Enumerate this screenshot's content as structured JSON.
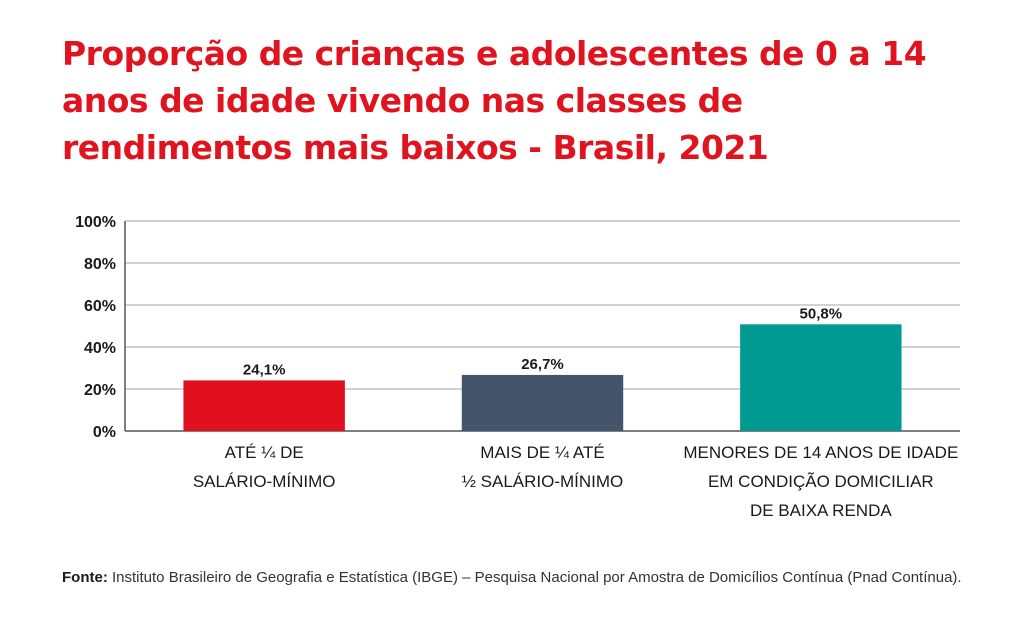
{
  "title": "Proporção de crianças e adolescentes de 0 a 14 anos de idade vivendo nas classes de rendimentos mais baixos - Brasil, 2021",
  "chart_data": {
    "type": "bar",
    "categories": [
      [
        "ATÉ ¼ DE",
        "SALÁRIO-MÍNIMO"
      ],
      [
        "MAIS DE ¼ ATÉ",
        "½ SALÁRIO-MÍNIMO"
      ],
      [
        "MENORES DE 14 ANOS DE IDADE",
        "EM CONDIÇÃO DOMICILIAR",
        "DE BAIXA RENDA"
      ]
    ],
    "values": [
      24.1,
      26.7,
      50.8
    ],
    "data_labels": [
      "24,1%",
      "26,7%",
      "50,8%"
    ],
    "colors": [
      "#e0101f",
      "#44546a",
      "#009a93"
    ],
    "ylim": [
      0,
      100
    ],
    "yticks": [
      0,
      20,
      40,
      60,
      80,
      100
    ],
    "ytick_labels": [
      "0%",
      "20%",
      "40%",
      "60%",
      "80%",
      "100%"
    ],
    "grid": true,
    "xlabel": "",
    "ylabel": ""
  },
  "source": {
    "label": "Fonte:",
    "text": " Instituto Brasileiro de Geografia e Estatística (IBGE) – Pesquisa Nacional por Amostra de Domicílios Contínua (Pnad Contínua)."
  }
}
